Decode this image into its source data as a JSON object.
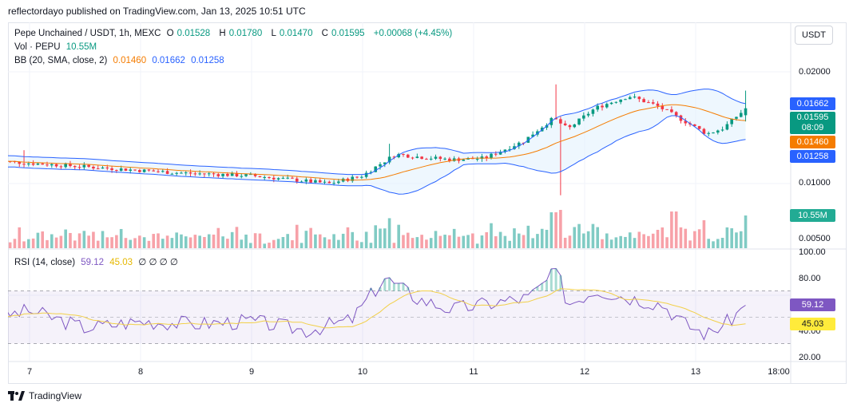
{
  "publisher": "reflectordayo published on TradingView.com, Jan 13, 2025 10:51 UTC",
  "legend": {
    "symbol": "Pepe Unchained / USDT, 1h, MEXC",
    "open_label": "O",
    "open": "0.01528",
    "high_label": "H",
    "high": "0.01780",
    "low_label": "L",
    "low": "0.01470",
    "close_label": "C",
    "close": "0.01595",
    "change": "+0.00068 (+4.45%)",
    "volume_label": "Vol · PEPU",
    "volume": "10.55M",
    "bb_label": "BB (20, SMA, close, 2)",
    "bb_basis": "0.01460",
    "bb_upper": "0.01662",
    "bb_lower": "0.01258",
    "rsi_label": "RSI (14, close)",
    "rsi": "59.12",
    "rsi_ma": "45.03",
    "rsi_extra": "∅ ∅ ∅ ∅"
  },
  "currency": "USDT",
  "price_tags": {
    "upper": "0.01662",
    "close": "0.01595",
    "countdown": "08:09",
    "basis": "0.01460",
    "lower": "0.01258",
    "volume": "10.55M",
    "rsi": "59.12",
    "rsi_ma": "45.03"
  },
  "colors": {
    "up": "#089981",
    "down": "#f23645",
    "bb_basis": "#f57c00",
    "bb_band": "#2962ff",
    "bb_fill": "#e3f2fd",
    "rsi": "#7e57c2",
    "rsi_ma": "#e6b800",
    "vol_up": "#80cbc4",
    "vol_down": "#f7a1a8"
  },
  "logo": "TradingView",
  "chart_data": [
    {
      "type": "candlestick",
      "title": "Pepe Unchained / USDT, 1h, MEXC",
      "y_ticks": [
        "0.02000",
        "0.01000",
        "0.00500"
      ],
      "x_ticks": [
        "7",
        "8",
        "9",
        "10",
        "11",
        "12",
        "13",
        "18:00"
      ],
      "scale": "log",
      "key_points": [
        {
          "day": 6.7,
          "price": 0.0115
        },
        {
          "day": 7.5,
          "price": 0.0111
        },
        {
          "day": 8.3,
          "price": 0.0107
        },
        {
          "day": 9.0,
          "price": 0.0105
        },
        {
          "day": 9.7,
          "price": 0.01
        },
        {
          "day": 10.0,
          "price": 0.0105
        },
        {
          "day": 10.3,
          "price": 0.012
        },
        {
          "day": 10.5,
          "price": 0.0118
        },
        {
          "day": 10.8,
          "price": 0.0116
        },
        {
          "day": 11.1,
          "price": 0.0117
        },
        {
          "day": 11.45,
          "price": 0.013
        },
        {
          "day": 11.72,
          "price": 0.015
        },
        {
          "day": 11.85,
          "price": 0.014
        },
        {
          "day": 12.1,
          "price": 0.016
        },
        {
          "day": 12.4,
          "price": 0.0172
        },
        {
          "day": 12.65,
          "price": 0.0162
        },
        {
          "day": 12.85,
          "price": 0.015
        },
        {
          "day": 13.1,
          "price": 0.0136
        },
        {
          "day": 13.25,
          "price": 0.0141
        },
        {
          "day": 13.45,
          "price": 0.0159
        }
      ],
      "last": {
        "open": 0.01528,
        "high": 0.0178,
        "low": 0.0147,
        "close": 0.01595
      },
      "bollinger": {
        "basis": 0.0146,
        "upper": 0.01662,
        "lower": 0.01258
      }
    },
    {
      "type": "bar",
      "title": "Vol · PEPU",
      "last_value": "10.55M"
    },
    {
      "type": "line",
      "title": "RSI (14, close)",
      "y_ticks": [
        "100.00",
        "80.00",
        "40.00",
        "20.00"
      ],
      "ylim": [
        20,
        100
      ],
      "bands": [
        70,
        50,
        30
      ],
      "rsi_points": [
        {
          "day": 6.7,
          "value": 50
        },
        {
          "day": 7.0,
          "value": 55
        },
        {
          "day": 7.5,
          "value": 42
        },
        {
          "day": 8.0,
          "value": 47
        },
        {
          "day": 8.5,
          "value": 45
        },
        {
          "day": 9.0,
          "value": 47
        },
        {
          "day": 9.5,
          "value": 40
        },
        {
          "day": 9.9,
          "value": 48
        },
        {
          "day": 10.2,
          "value": 80
        },
        {
          "day": 10.5,
          "value": 64
        },
        {
          "day": 10.8,
          "value": 56
        },
        {
          "day": 11.1,
          "value": 60
        },
        {
          "day": 11.5,
          "value": 65
        },
        {
          "day": 11.75,
          "value": 85
        },
        {
          "day": 11.85,
          "value": 60
        },
        {
          "day": 12.1,
          "value": 71
        },
        {
          "day": 12.4,
          "value": 65
        },
        {
          "day": 12.7,
          "value": 60
        },
        {
          "day": 12.9,
          "value": 45
        },
        {
          "day": 13.1,
          "value": 37
        },
        {
          "day": 13.3,
          "value": 47
        },
        {
          "day": 13.45,
          "value": 59.12
        }
      ],
      "rsi_ma_last": 45.03
    }
  ]
}
